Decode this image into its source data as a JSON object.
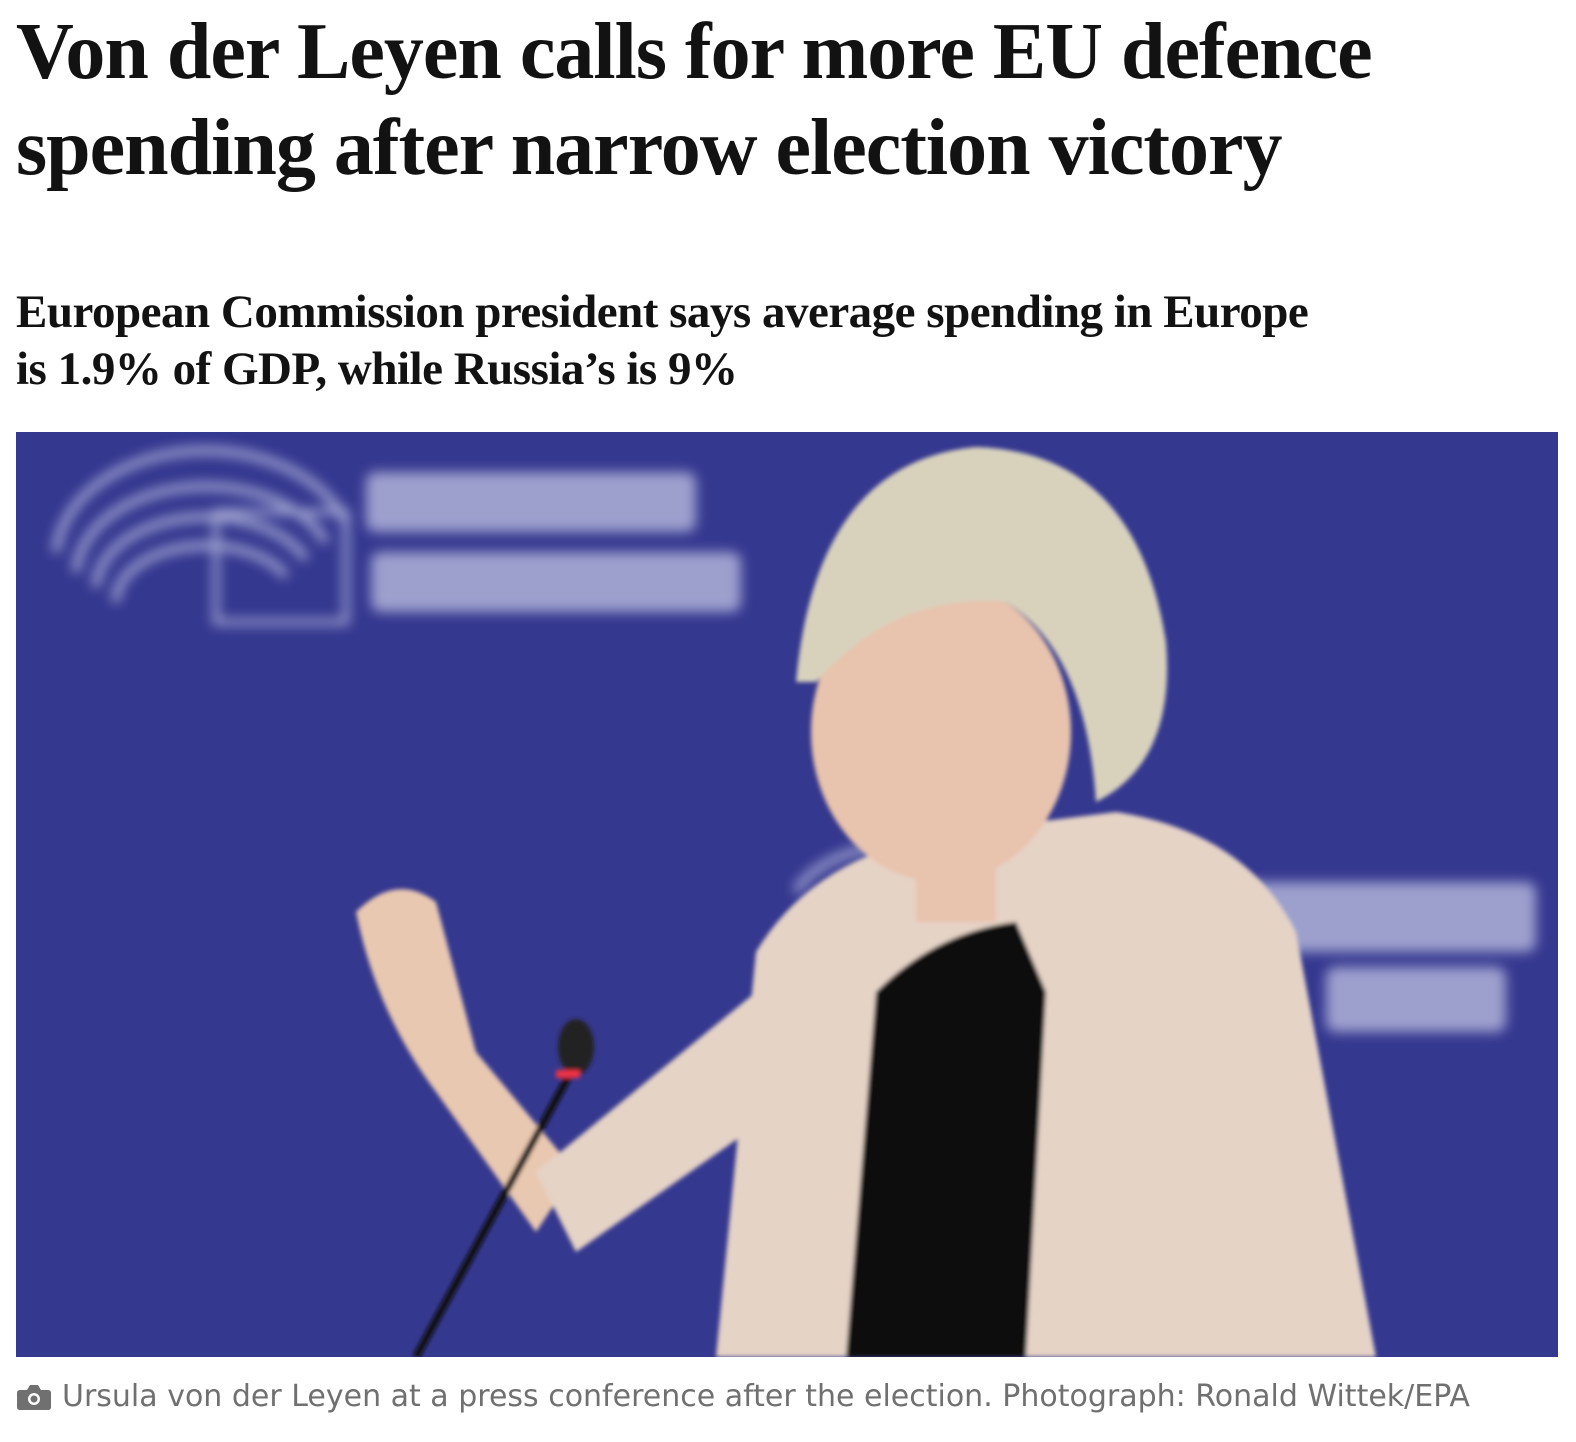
{
  "headline": "Von der Leyen calls for more EU defence spending after narrow election victory",
  "standfirst": "European Commission president says average spending in Europe is 1.9% of GDP, while Russia’s is 9%",
  "image": {
    "caption": "Ursula von der Leyen at a press conference after the election. Photograph: Ronald Wittek/EPA"
  }
}
